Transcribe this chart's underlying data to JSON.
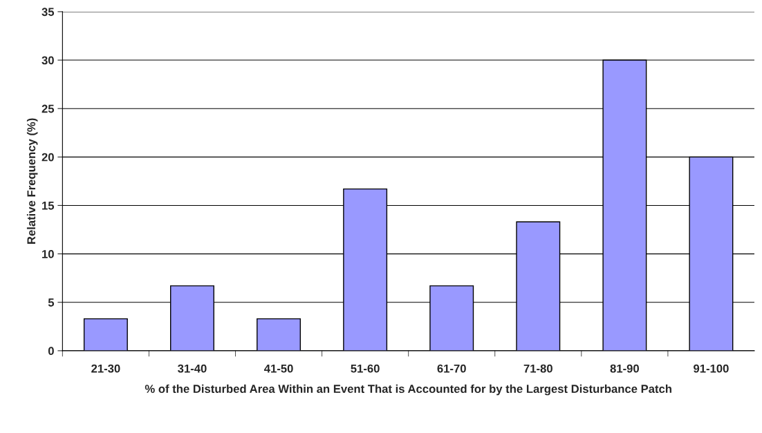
{
  "chart_data": {
    "type": "bar",
    "xlabel": "% of the Disturbed Area Within an Event That is Accounted for by the Largest Disturbance Patch",
    "ylabel": "Relative Frequency (%)",
    "categories": [
      "21-30",
      "31-40",
      "41-50",
      "51-60",
      "61-70",
      "71-80",
      "81-90",
      "91-100"
    ],
    "values": [
      3.3,
      6.7,
      3.3,
      16.7,
      6.7,
      13.3,
      30,
      20
    ],
    "color": "#9999ff",
    "ylim": [
      0,
      35
    ],
    "yticks": [
      0,
      5,
      10,
      15,
      20,
      25,
      30,
      35
    ],
    "grid": "y",
    "legend": false
  }
}
